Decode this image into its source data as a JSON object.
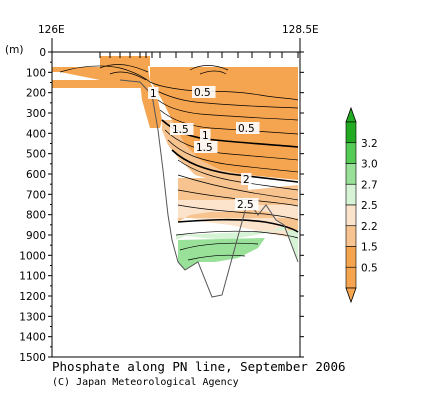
{
  "chart_data": {
    "type": "contour-section",
    "title": "Phosphate along PN line, September 2006",
    "credit": "(C) Japan Meteorological Agency",
    "ylabel": "(m)",
    "x_ticks": [
      "126E",
      "128.5E"
    ],
    "ylim": [
      1500,
      0
    ],
    "y_ticks": [
      0,
      100,
      200,
      300,
      400,
      500,
      600,
      700,
      800,
      900,
      1000,
      1100,
      1200,
      1300,
      1400,
      1500
    ],
    "contour_labels": [
      "1",
      "0.5",
      "0.5",
      "1.5",
      "1",
      "1.5",
      "2",
      "2.5"
    ],
    "colorbar": {
      "levels": [
        "0.5",
        "1.5",
        "2.2",
        "2.5",
        "2.7",
        "3.0",
        "3.2"
      ],
      "colors": [
        "#f5a550",
        "#f7c38f",
        "#fbe3cc",
        "#d6f3d6",
        "#99e099",
        "#55cc55",
        "#22aa22"
      ]
    }
  }
}
